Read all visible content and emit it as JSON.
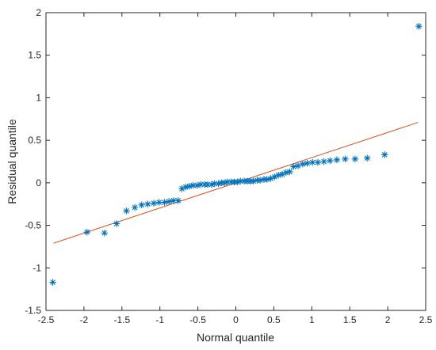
{
  "chart_data": {
    "type": "scatter",
    "title": "",
    "xlabel": "Normal quantile",
    "ylabel": "Residual quantile",
    "xlim": [
      -2.5,
      2.5
    ],
    "ylim": [
      -1.5,
      2
    ],
    "xticks": [
      -2.5,
      -2,
      -1.5,
      -1,
      -0.5,
      0,
      0.5,
      1,
      1.5,
      2,
      2.5
    ],
    "yticks": [
      -1.5,
      -1,
      -0.5,
      0,
      0.5,
      1,
      1.5,
      2
    ],
    "xtick_labels": [
      "-2.5",
      "-2",
      "-1.5",
      "-1",
      "-0.5",
      "0",
      "0.5",
      "1",
      "1.5",
      "2",
      "2.5"
    ],
    "ytick_labels": [
      "-1.5",
      "-1",
      "-0.5",
      "0",
      "0.5",
      "1",
      "1.5",
      "2"
    ],
    "grid": false,
    "legend": "none",
    "marker": "asterisk",
    "marker_color": "#0072BD",
    "line_color": "#D95319",
    "reference_line": {
      "x": [
        -2.4,
        2.4
      ],
      "y": [
        -0.71,
        0.71
      ]
    },
    "points": [
      [
        -2.41,
        -1.17
      ],
      [
        -1.96,
        -0.58
      ],
      [
        -1.73,
        -0.59
      ],
      [
        -1.57,
        -0.48
      ],
      [
        -1.44,
        -0.33
      ],
      [
        -1.33,
        -0.29
      ],
      [
        -1.24,
        -0.26
      ],
      [
        -1.16,
        -0.25
      ],
      [
        -1.08,
        -0.24
      ],
      [
        -1.01,
        -0.23
      ],
      [
        -0.94,
        -0.23
      ],
      [
        -0.88,
        -0.22
      ],
      [
        -0.82,
        -0.21
      ],
      [
        -0.76,
        -0.21
      ],
      [
        -0.71,
        -0.07
      ],
      [
        -0.66,
        -0.05
      ],
      [
        -0.61,
        -0.04
      ],
      [
        -0.56,
        -0.03
      ],
      [
        -0.51,
        -0.03
      ],
      [
        -0.46,
        -0.02
      ],
      [
        -0.41,
        -0.02
      ],
      [
        -0.37,
        -0.02
      ],
      [
        -0.32,
        -0.02
      ],
      [
        -0.28,
        -0.01
      ],
      [
        -0.23,
        -0.01
      ],
      [
        -0.19,
        0.0
      ],
      [
        -0.15,
        0.0
      ],
      [
        -0.11,
        0.01
      ],
      [
        -0.06,
        0.01
      ],
      [
        -0.02,
        0.01
      ],
      [
        0.02,
        0.01
      ],
      [
        0.06,
        0.02
      ],
      [
        0.11,
        0.02
      ],
      [
        0.15,
        0.02
      ],
      [
        0.19,
        0.02
      ],
      [
        0.23,
        0.02
      ],
      [
        0.28,
        0.03
      ],
      [
        0.32,
        0.03
      ],
      [
        0.37,
        0.04
      ],
      [
        0.41,
        0.04
      ],
      [
        0.46,
        0.05
      ],
      [
        0.51,
        0.07
      ],
      [
        0.56,
        0.09
      ],
      [
        0.61,
        0.1
      ],
      [
        0.66,
        0.12
      ],
      [
        0.71,
        0.13
      ],
      [
        0.76,
        0.19
      ],
      [
        0.82,
        0.2
      ],
      [
        0.88,
        0.22
      ],
      [
        0.94,
        0.23
      ],
      [
        1.01,
        0.24
      ],
      [
        1.08,
        0.24
      ],
      [
        1.16,
        0.25
      ],
      [
        1.24,
        0.26
      ],
      [
        1.33,
        0.27
      ],
      [
        1.44,
        0.28
      ],
      [
        1.57,
        0.28
      ],
      [
        1.73,
        0.29
      ],
      [
        1.96,
        0.33
      ],
      [
        2.41,
        1.84
      ]
    ]
  }
}
